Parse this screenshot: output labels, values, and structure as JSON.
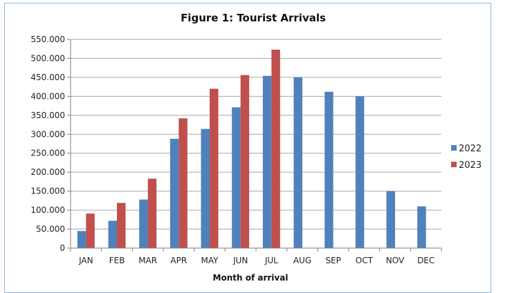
{
  "chart_data": {
    "type": "bar",
    "title": "Figure 1: Tourist Arrivals",
    "xlabel": "Month of arrival",
    "ylabel": "",
    "ylim": [
      0,
      550000
    ],
    "y_ticks": [
      "0",
      "50.000",
      "100.000",
      "150.000",
      "200.000",
      "250.000",
      "300.000",
      "350.000",
      "400.000",
      "450.000",
      "500.000",
      "550.000"
    ],
    "categories": [
      "JAN",
      "FEB",
      "MAR",
      "APR",
      "MAY",
      "JUN",
      "JUL",
      "AUG",
      "SEP",
      "OCT",
      "NOV",
      "DEC"
    ],
    "series": [
      {
        "name": "2022",
        "color": "#4f81bd",
        "values": [
          45000,
          72000,
          128000,
          288000,
          314000,
          371000,
          454000,
          450000,
          412000,
          400000,
          150000,
          110000
        ]
      },
      {
        "name": "2023",
        "color": "#c0504d",
        "values": [
          91000,
          119000,
          183000,
          342000,
          420000,
          456000,
          523000,
          null,
          null,
          null,
          null,
          null
        ]
      }
    ],
    "grid": true,
    "legend_position": "right"
  }
}
